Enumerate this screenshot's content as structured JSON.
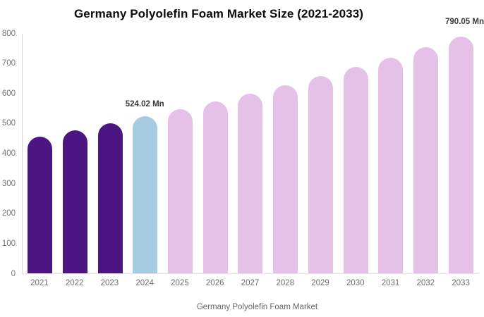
{
  "title": "Germany Polyolefin Foam Market Size (2021-2033)",
  "annotations": {
    "bar_2024_label": "524.02 Mn",
    "bar_2033_label": "790.05 Mn"
  },
  "legend": {
    "label": "Germany Polyolefin Foam Market",
    "swatch_color": "#4b1582"
  },
  "colors": {
    "historical_bar": "#4b1582",
    "current_year_bar": "#a4cbdf",
    "forecast_bar": "#e5c0e7",
    "axis_text": "#757575",
    "title_text": "#0b0b0b",
    "value_label_text": "#3a3a3a",
    "axis_line": "#d9d9d9"
  },
  "chart_data": {
    "type": "bar",
    "title": "Germany Polyolefin Foam Market Size (2021-2033)",
    "xlabel": "",
    "ylabel": "",
    "ylim": [
      0,
      800
    ],
    "yticks": [
      0,
      100,
      200,
      300,
      400,
      500,
      600,
      700,
      800
    ],
    "grid": false,
    "legend_position": "bottom",
    "categories": [
      "2021",
      "2022",
      "2023",
      "2024",
      "2025",
      "2026",
      "2027",
      "2028",
      "2029",
      "2030",
      "2031",
      "2032",
      "2033"
    ],
    "values": [
      457.0,
      478.3,
      500.7,
      524.02,
      548.5,
      574.1,
      600.9,
      628.9,
      658.3,
      689.0,
      721.2,
      754.9,
      790.05
    ],
    "labeled_values": {
      "2024": "524.02 Mn",
      "2033": "790.05 Mn"
    },
    "bar_colors": [
      "#4b1582",
      "#4b1582",
      "#4b1582",
      "#a4cbdf",
      "#e5c0e7",
      "#e5c0e7",
      "#e5c0e7",
      "#e5c0e7",
      "#e5c0e7",
      "#e5c0e7",
      "#e5c0e7",
      "#e5c0e7",
      "#e5c0e7"
    ],
    "series_name": "Germany Polyolefin Foam Market"
  }
}
